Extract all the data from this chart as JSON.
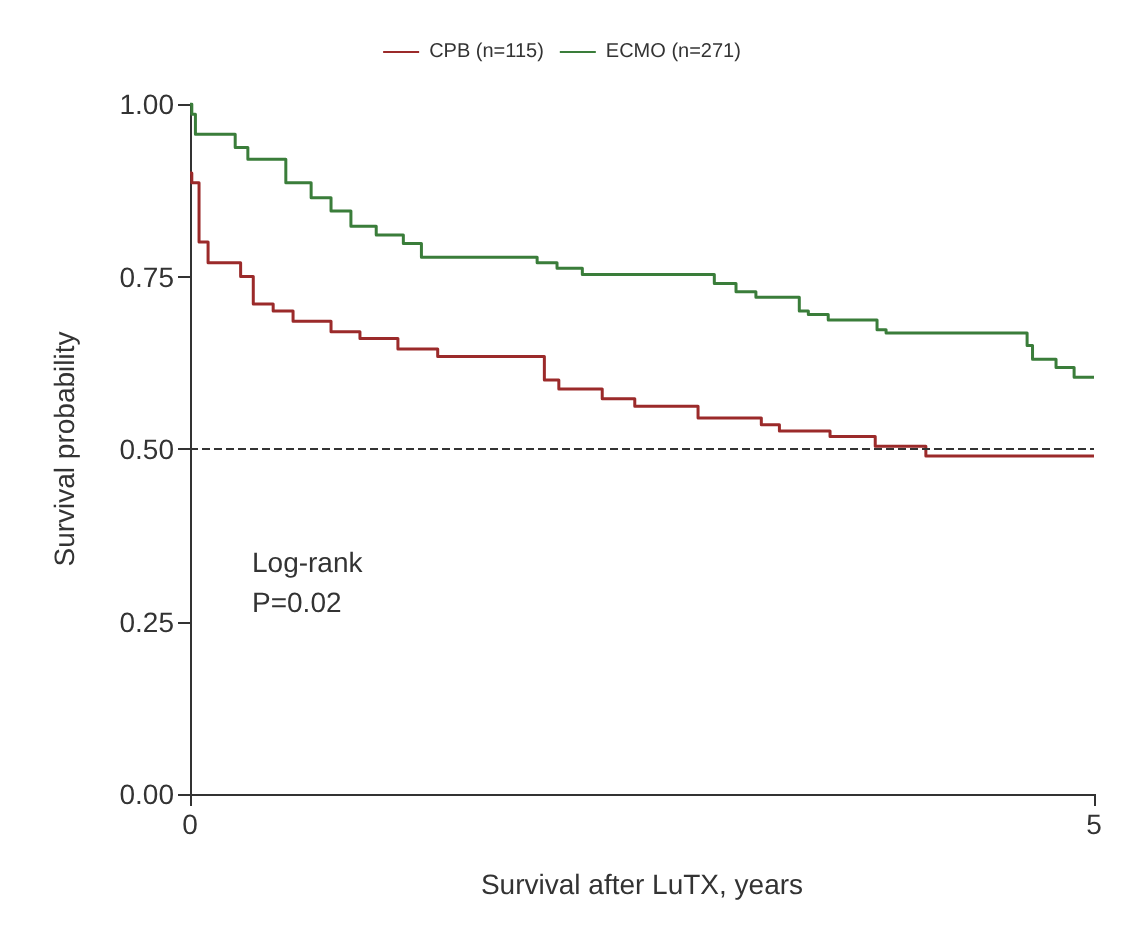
{
  "chart_data": {
    "type": "step",
    "xlabel": "Survival after LuTX, years",
    "ylabel": "Survival probability",
    "xlim": [
      0,
      5
    ],
    "xticks": [
      0,
      5
    ],
    "ylim": [
      0,
      1
    ],
    "yticks": [
      {
        "value": 0,
        "label": "0.00"
      },
      {
        "value": 0.25,
        "label": "0.25"
      },
      {
        "value": 0.5,
        "label": "0.50"
      },
      {
        "value": 0.75,
        "label": "0.75"
      },
      {
        "value": 1,
        "label": "1.00"
      }
    ],
    "grid": false,
    "legend": "top",
    "series": [
      {
        "name": "CPB (n=115)",
        "color": "#9b2a2a",
        "x": [
          0,
          0.01,
          0.05,
          0.1,
          0.28,
          0.35,
          0.46,
          0.57,
          0.78,
          0.94,
          1.15,
          1.37,
          1.96,
          2.04,
          2.28,
          2.46,
          2.81,
          3.16,
          3.26,
          3.54,
          3.79,
          4.07,
          5
        ],
        "values": [
          0.9,
          0.886,
          0.8,
          0.77,
          0.75,
          0.71,
          0.7,
          0.685,
          0.67,
          0.66,
          0.645,
          0.634,
          0.6,
          0.587,
          0.573,
          0.562,
          0.545,
          0.535,
          0.526,
          0.518,
          0.504,
          0.49,
          0.49
        ]
      },
      {
        "name": "ECMO (n=271)",
        "color": "#3a7d3a",
        "x": [
          0,
          0.01,
          0.03,
          0.25,
          0.32,
          0.53,
          0.67,
          0.78,
          0.89,
          1.03,
          1.18,
          1.28,
          1.92,
          2.03,
          2.17,
          2.9,
          3.02,
          3.13,
          3.37,
          3.42,
          3.53,
          3.8,
          3.85,
          4.63,
          4.66,
          4.79,
          4.89,
          5
        ],
        "values": [
          1,
          0.985,
          0.956,
          0.937,
          0.92,
          0.886,
          0.864,
          0.845,
          0.823,
          0.81,
          0.798,
          0.778,
          0.77,
          0.762,
          0.753,
          0.74,
          0.728,
          0.72,
          0.7,
          0.695,
          0.687,
          0.673,
          0.668,
          0.65,
          0.63,
          0.618,
          0.604,
          0.604
        ]
      }
    ],
    "ref_lines": [
      {
        "axis": "y",
        "value": 0.5,
        "line_style": "dashed",
        "color": "#333333"
      }
    ],
    "annotations": [
      "Log-rank\nP=0.02"
    ]
  }
}
